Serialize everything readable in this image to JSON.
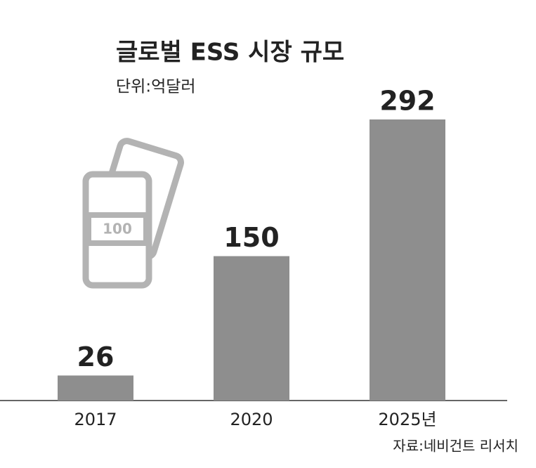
{
  "chart_data": {
    "type": "bar",
    "title": "글로벌 ESS 시장 규모",
    "subtitle": "단위:억달러",
    "categories": [
      "2017",
      "2020",
      "2025년"
    ],
    "values": [
      26,
      150,
      292
    ],
    "color": "#8e8e8e",
    "icon_label": "100",
    "source": "자료:네비건트 리서치"
  }
}
